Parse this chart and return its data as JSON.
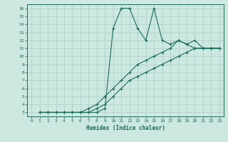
{
  "xlabel": "Humidex (Indice chaleur)",
  "xlim": [
    -0.5,
    23.5
  ],
  "ylim": [
    2.5,
    16.5
  ],
  "xticks": [
    0,
    1,
    2,
    3,
    4,
    5,
    6,
    7,
    8,
    9,
    10,
    11,
    12,
    13,
    14,
    15,
    16,
    17,
    18,
    19,
    20,
    21,
    22,
    23
  ],
  "yticks": [
    3,
    4,
    5,
    6,
    7,
    8,
    9,
    10,
    11,
    12,
    13,
    14,
    15,
    16
  ],
  "bg_color": "#cce8e0",
  "grid_color": "#aacec6",
  "line_color": "#1a6b5a",
  "line1_x": [
    1,
    2,
    3,
    4,
    5,
    6,
    7,
    8,
    9,
    10,
    11,
    12,
    13,
    14,
    15,
    16,
    17,
    18,
    19,
    20,
    21,
    22,
    23
  ],
  "line1_y": [
    3,
    3,
    3,
    3,
    3,
    3,
    3,
    3,
    3.5,
    13.5,
    16,
    16,
    13.5,
    12,
    16,
    12,
    11.5,
    12,
    11.5,
    11,
    11,
    11,
    11
  ],
  "line2_x": [
    1,
    2,
    3,
    4,
    5,
    6,
    7,
    8,
    9,
    10,
    11,
    12,
    13,
    14,
    15,
    16,
    17,
    18,
    19,
    20,
    21,
    22,
    23
  ],
  "line2_y": [
    3,
    3,
    3,
    3,
    3,
    3,
    3.5,
    4,
    5,
    6,
    7,
    8,
    9,
    9.5,
    10,
    10.5,
    11,
    12,
    11.5,
    12,
    11,
    11,
    11
  ],
  "line3_x": [
    1,
    2,
    3,
    4,
    5,
    6,
    7,
    8,
    9,
    10,
    11,
    12,
    13,
    14,
    15,
    16,
    17,
    18,
    19,
    20,
    21,
    22,
    23
  ],
  "line3_y": [
    3,
    3,
    3,
    3,
    3,
    3,
    3,
    3.5,
    4,
    5,
    6,
    7,
    7.5,
    8,
    8.5,
    9,
    9.5,
    10,
    10.5,
    11,
    11,
    11,
    11
  ]
}
